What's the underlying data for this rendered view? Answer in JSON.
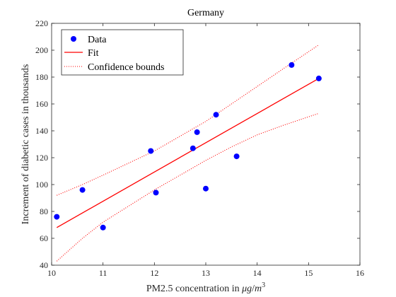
{
  "chart_data": {
    "type": "scatter",
    "title": "Germany",
    "xlabel": "PM2.5 concentration in μg/m³",
    "xlabel_parts": {
      "text": "PM2.5 concentration in ",
      "mu": "μ",
      "g": "g",
      "slash": "/",
      "m": "m",
      "sup": "3"
    },
    "ylabel": "Increment of diabetic cases in thousands",
    "xlim": [
      10,
      16
    ],
    "ylim": [
      40,
      220
    ],
    "xticks": [
      10,
      11,
      12,
      13,
      14,
      15,
      16
    ],
    "yticks": [
      40,
      60,
      80,
      100,
      120,
      140,
      160,
      180,
      200,
      220
    ],
    "legend_position": "top-left",
    "series": [
      {
        "name": "Data",
        "style": "markers",
        "color": "#0000ff",
        "x": [
          10.1,
          10.6,
          11.0,
          11.93,
          12.03,
          12.75,
          12.83,
          13.0,
          13.2,
          13.6,
          14.67,
          15.2
        ],
        "y": [
          76,
          96,
          68,
          125,
          94,
          127,
          139,
          97,
          152,
          121,
          189,
          179
        ]
      },
      {
        "name": "Fit",
        "style": "solid-line",
        "color": "#ff0000",
        "x": [
          10.1,
          15.2
        ],
        "y": [
          68,
          179
        ]
      },
      {
        "name": "Confidence bounds",
        "style": "dotted-line",
        "color": "#ff0000",
        "upper": {
          "x": [
            10.1,
            10.6,
            11.0,
            11.5,
            12.0,
            12.5,
            13.0,
            13.5,
            14.0,
            14.5,
            15.2
          ],
          "y": [
            92,
            100,
            107,
            116,
            125,
            136,
            147,
            160,
            173,
            186,
            204
          ]
        },
        "lower": {
          "x": [
            10.1,
            10.6,
            11.0,
            11.5,
            12.0,
            12.5,
            13.0,
            13.5,
            14.0,
            14.5,
            15.2
          ],
          "y": [
            43,
            60,
            72,
            84,
            96,
            107,
            118,
            128,
            137,
            144,
            153
          ]
        }
      }
    ]
  }
}
